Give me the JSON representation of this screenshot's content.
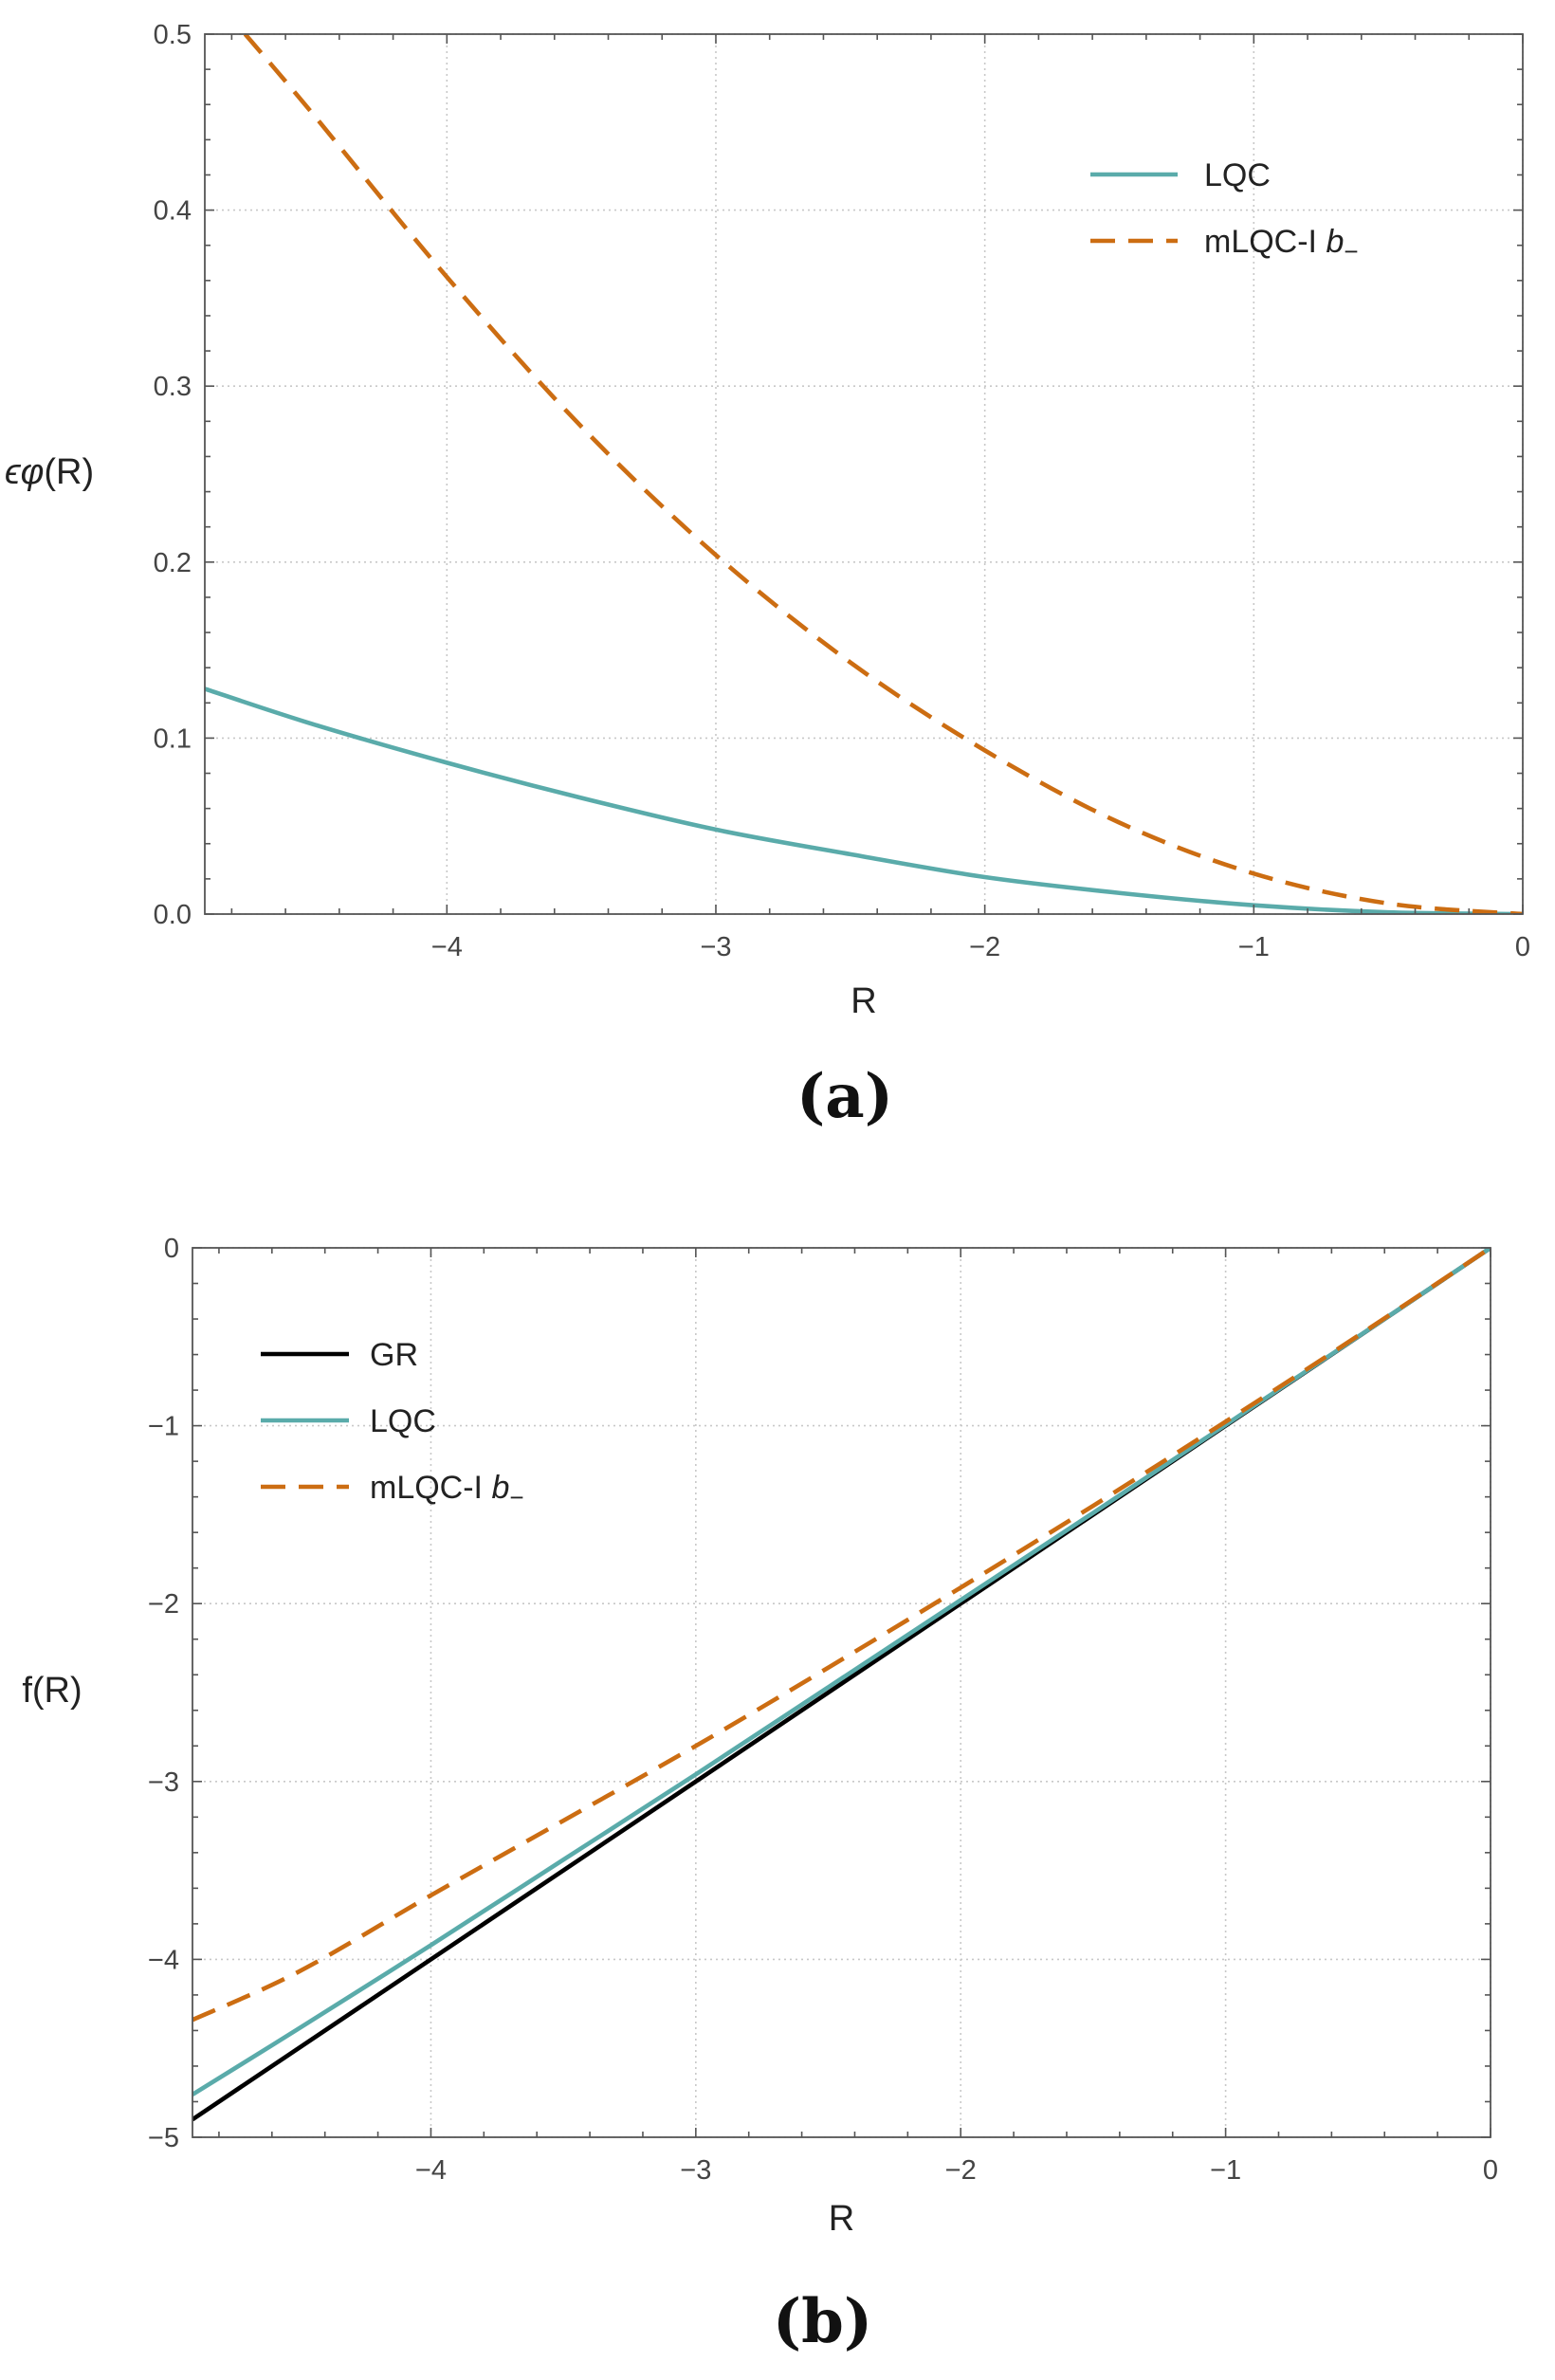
{
  "colors": {
    "GR": "#000000",
    "LQC": "#5aabaa",
    "mLQC-I b-": "#cc6d12"
  },
  "chart_data": [
    {
      "type": "line",
      "panel": "(a)",
      "xlabel": "R",
      "ylabel_prefix": "ϵφ",
      "ylabel_suffix": "(R)",
      "xlim": [
        -4.9,
        0
      ],
      "ylim": [
        0,
        0.5
      ],
      "xticks": [
        -4,
        -3,
        -2,
        -1,
        0
      ],
      "xtick_labels": [
        "−4",
        "−3",
        "−2",
        "−1",
        "0"
      ],
      "yticks": [
        0.0,
        0.1,
        0.2,
        0.3,
        0.4,
        0.5
      ],
      "ytick_labels": [
        "0.0",
        "0.1",
        "0.2",
        "0.3",
        "0.4",
        "0.5"
      ],
      "grid": true,
      "legend_position": "top-right",
      "series": [
        {
          "name": "LQC",
          "label_main": "LQC",
          "label_sub": "",
          "style": "solid",
          "x": [
            -4.9,
            -4.5,
            -4.0,
            -3.5,
            -3.0,
            -2.5,
            -2.0,
            -1.5,
            -1.0,
            -0.5,
            0.0
          ],
          "y": [
            0.128,
            0.108,
            0.086,
            0.066,
            0.048,
            0.034,
            0.021,
            0.012,
            0.005,
            0.001,
            0.0
          ]
        },
        {
          "name": "mLQC-I b-",
          "label_main": "mLQC-I ",
          "label_italic": "b",
          "label_sub": "−",
          "style": "dashed",
          "x": [
            -4.75,
            -4.5,
            -4.0,
            -3.5,
            -3.0,
            -2.5,
            -2.0,
            -1.5,
            -1.0,
            -0.5,
            0.0
          ],
          "y": [
            0.5,
            0.455,
            0.362,
            0.277,
            0.204,
            0.143,
            0.093,
            0.052,
            0.023,
            0.006,
            0.0
          ]
        }
      ]
    },
    {
      "type": "line",
      "panel": "(b)",
      "xlabel": "R",
      "ylabel": "f(R)",
      "xlim": [
        -4.9,
        0
      ],
      "ylim": [
        -5,
        0
      ],
      "xticks": [
        -4,
        -3,
        -2,
        -1,
        0
      ],
      "xtick_labels": [
        "−4",
        "−3",
        "−2",
        "−1",
        "0"
      ],
      "yticks": [
        -5,
        -4,
        -3,
        -2,
        -1,
        0
      ],
      "ytick_labels": [
        "−5",
        "−4",
        "−3",
        "−2",
        "−1",
        "0"
      ],
      "grid": true,
      "legend_position": "top-left",
      "series": [
        {
          "name": "GR",
          "label_main": "GR",
          "label_sub": "",
          "style": "solid",
          "x": [
            -4.9,
            0.0
          ],
          "y": [
            -4.9,
            0.0
          ]
        },
        {
          "name": "LQC",
          "label_main": "LQC",
          "label_sub": "",
          "style": "solid",
          "x": [
            -4.9,
            -4.5,
            -4.0,
            -3.5,
            -3.0,
            -2.5,
            -2.0,
            -1.5,
            -1.0,
            -0.5,
            0.0
          ],
          "y": [
            -4.76,
            -4.39,
            -3.92,
            -3.44,
            -2.96,
            -2.47,
            -1.98,
            -1.49,
            -0.995,
            -0.499,
            0.0
          ]
        },
        {
          "name": "mLQC-I b-",
          "label_main": "mLQC-I ",
          "label_italic": "b",
          "label_sub": "−",
          "style": "dashed",
          "x": [
            -4.9,
            -4.5,
            -4.0,
            -3.5,
            -3.0,
            -2.5,
            -2.0,
            -1.5,
            -1.0,
            -0.5,
            0.0
          ],
          "y": [
            -4.34,
            -4.07,
            -3.64,
            -3.22,
            -2.8,
            -2.36,
            -1.91,
            -1.45,
            -0.977,
            -0.494,
            0.0
          ]
        }
      ]
    }
  ]
}
